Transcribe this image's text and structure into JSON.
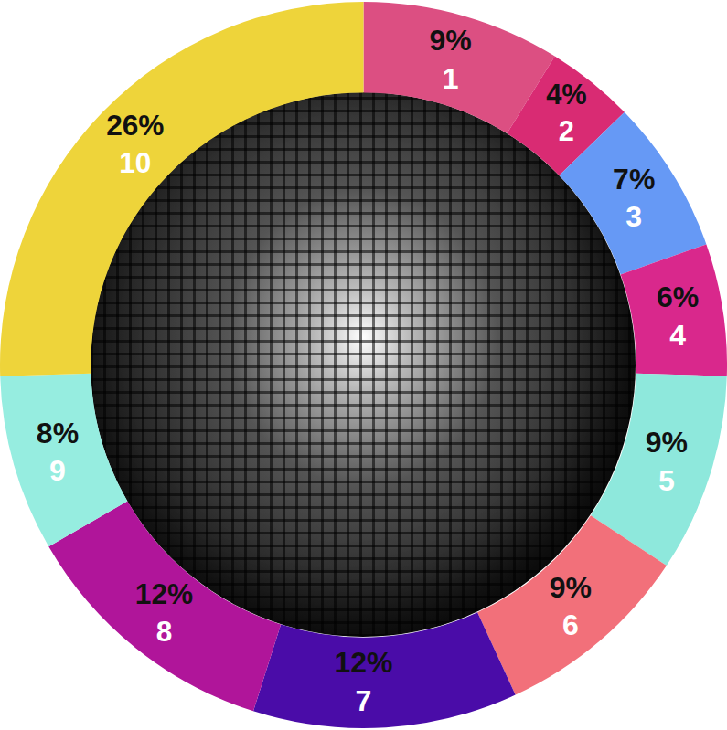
{
  "chart_data": {
    "type": "pie",
    "categories": [
      "1",
      "2",
      "3",
      "4",
      "5",
      "6",
      "7",
      "8",
      "9",
      "10"
    ],
    "values": [
      9,
      4,
      7,
      6,
      9,
      9,
      12,
      12,
      8,
      26
    ],
    "value_labels": [
      "9%",
      "4%",
      "7%",
      "6%",
      "9%",
      "9%",
      "12%",
      "12%",
      "8%",
      "26%"
    ],
    "colors": [
      "#dc4f82",
      "#d92b73",
      "#6699f5",
      "#d9288c",
      "#8ee8dc",
      "#f2707a",
      "#4a0ca8",
      "#b0159a",
      "#96ede0",
      "#eed43a"
    ],
    "data_labels": true
  }
}
